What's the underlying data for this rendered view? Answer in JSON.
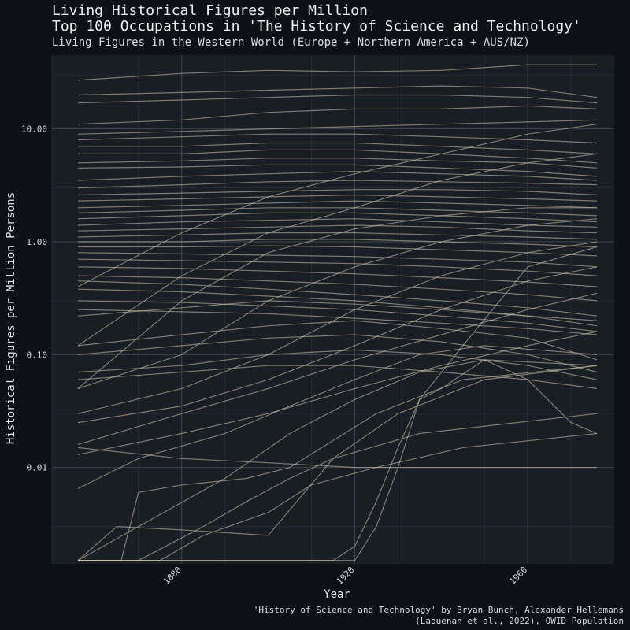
{
  "chart_data": {
    "type": "line",
    "title": "Living Historical Figures per Million",
    "title_line2": "Top 100 Occupations in 'The History of Science and Technology'",
    "subtitle": "Living Figures in the Western World (Europe + Northern America + AUS/NZ)",
    "xlabel": "Year",
    "ylabel": "Historical Figures per Million Persons",
    "caption_line1": "'History of Science and Technology' by Bryan Bunch, Alexander Hellemans",
    "caption_line2": "(Laouenan et al., 2022), OWID Population",
    "y_scale": "log10",
    "xlim": [
      1850,
      1980
    ],
    "ylim": [
      0.0014,
      45
    ],
    "x_ticks": [
      1880,
      1920,
      1960
    ],
    "x_tick_labels": [
      "1880",
      "1920",
      "1960"
    ],
    "y_ticks": [
      0.01,
      0.1,
      1,
      10
    ],
    "y_tick_labels": [
      "0.01",
      "0.10",
      "1.00",
      "10.00"
    ],
    "grid": true,
    "legend": "none",
    "line_color": "#cfc8b0",
    "series": [
      {
        "x": [
          1856,
          1880,
          1900,
          1920,
          1940,
          1960,
          1976
        ],
        "values": [
          27,
          31,
          33,
          32,
          33,
          37,
          37
        ]
      },
      {
        "x": [
          1856,
          1880,
          1900,
          1920,
          1940,
          1960,
          1976
        ],
        "values": [
          20,
          21,
          22,
          23,
          24,
          23,
          19
        ]
      },
      {
        "x": [
          1856,
          1880,
          1900,
          1920,
          1940,
          1960,
          1976
        ],
        "values": [
          17,
          18,
          19,
          20,
          20,
          19,
          17
        ]
      },
      {
        "x": [
          1856,
          1880,
          1900,
          1920,
          1940,
          1960,
          1976
        ],
        "values": [
          11,
          12,
          14,
          15,
          15,
          16,
          15
        ]
      },
      {
        "x": [
          1856,
          1880,
          1900,
          1920,
          1940,
          1960,
          1976
        ],
        "values": [
          9,
          9.5,
          10,
          10.5,
          11,
          11.5,
          12
        ]
      },
      {
        "x": [
          1856,
          1880,
          1900,
          1920,
          1940,
          1960,
          1976
        ],
        "values": [
          8,
          8.5,
          9,
          9,
          8.5,
          8,
          7.5
        ]
      },
      {
        "x": [
          1856,
          1880,
          1900,
          1920,
          1940,
          1960,
          1976
        ],
        "values": [
          7,
          7,
          7.5,
          7.5,
          7,
          6.5,
          6
        ]
      },
      {
        "x": [
          1856,
          1880,
          1900,
          1920,
          1940,
          1960,
          1976
        ],
        "values": [
          6,
          6,
          6.5,
          6.5,
          6,
          5.5,
          5
        ]
      },
      {
        "x": [
          1856,
          1880,
          1900,
          1920,
          1940,
          1960,
          1976
        ],
        "values": [
          5,
          5.2,
          5.5,
          5.5,
          5.2,
          5,
          4.5
        ]
      },
      {
        "x": [
          1856,
          1880,
          1900,
          1920,
          1940,
          1960,
          1976
        ],
        "values": [
          4.5,
          4.6,
          4.8,
          4.8,
          4.5,
          4.2,
          3.8
        ]
      },
      {
        "x": [
          1856,
          1880,
          1900,
          1920,
          1940,
          1960,
          1976
        ],
        "values": [
          3.5,
          3.8,
          4,
          4.2,
          4,
          3.8,
          3.5
        ]
      },
      {
        "x": [
          1856,
          1880,
          1900,
          1920,
          1940,
          1960,
          1976
        ],
        "values": [
          3,
          3.2,
          3.4,
          3.5,
          3.4,
          3.3,
          3.2
        ]
      },
      {
        "x": [
          1856,
          1880,
          1900,
          1920,
          1940,
          1960,
          1976
        ],
        "values": [
          2.6,
          2.7,
          2.8,
          2.9,
          2.9,
          2.8,
          2.6
        ]
      },
      {
        "x": [
          1856,
          1880,
          1900,
          1920,
          1940,
          1960,
          1976
        ],
        "values": [
          2.3,
          2.4,
          2.5,
          2.6,
          2.5,
          2.4,
          2.3
        ]
      },
      {
        "x": [
          1856,
          1880,
          1900,
          1920,
          1940,
          1960,
          1976
        ],
        "values": [
          2,
          2.1,
          2.2,
          2.3,
          2.2,
          2.1,
          2
        ]
      },
      {
        "x": [
          1856,
          1880,
          1900,
          1920,
          1940,
          1960,
          1976
        ],
        "values": [
          1.8,
          1.9,
          2,
          2,
          1.9,
          1.8,
          1.7
        ]
      },
      {
        "x": [
          1856,
          1880,
          1900,
          1920,
          1940,
          1960,
          1976
        ],
        "values": [
          1.6,
          1.7,
          1.8,
          1.8,
          1.7,
          1.6,
          1.5
        ]
      },
      {
        "x": [
          1856,
          1880,
          1900,
          1920,
          1940,
          1960,
          1976
        ],
        "values": [
          1.4,
          1.5,
          1.55,
          1.6,
          1.5,
          1.4,
          1.35
        ]
      },
      {
        "x": [
          1856,
          1880,
          1900,
          1920,
          1940,
          1960,
          1976
        ],
        "values": [
          1.25,
          1.3,
          1.35,
          1.4,
          1.35,
          1.25,
          1.2
        ]
      },
      {
        "x": [
          1856,
          1880,
          1900,
          1920,
          1940,
          1960,
          1976
        ],
        "values": [
          1.1,
          1.15,
          1.2,
          1.2,
          1.15,
          1.1,
          1.05
        ]
      },
      {
        "x": [
          1856,
          1880,
          1900,
          1920,
          1940,
          1960,
          1976
        ],
        "values": [
          1,
          1,
          1.05,
          1.05,
          1,
          0.95,
          0.9
        ]
      },
      {
        "x": [
          1856,
          1880,
          1900,
          1920,
          1940,
          1960,
          1976
        ],
        "values": [
          0.9,
          0.9,
          0.92,
          0.9,
          0.85,
          0.8,
          0.75
        ]
      },
      {
        "x": [
          1856,
          1880,
          1900,
          1920,
          1940,
          1960,
          1976
        ],
        "values": [
          0.8,
          0.78,
          0.76,
          0.74,
          0.7,
          0.66,
          0.6
        ]
      },
      {
        "x": [
          1856,
          1880,
          1900,
          1920,
          1940,
          1960,
          1976
        ],
        "values": [
          0.7,
          0.68,
          0.66,
          0.64,
          0.6,
          0.55,
          0.5
        ]
      },
      {
        "x": [
          1856,
          1880,
          1900,
          1920,
          1940,
          1960,
          1976
        ],
        "values": [
          0.6,
          0.58,
          0.55,
          0.52,
          0.48,
          0.44,
          0.4
        ]
      },
      {
        "x": [
          1856,
          1880,
          1900,
          1920,
          1940,
          1960,
          1976
        ],
        "values": [
          0.5,
          0.48,
          0.45,
          0.42,
          0.38,
          0.34,
          0.3
        ]
      },
      {
        "x": [
          1856,
          1880,
          1900,
          1920,
          1940,
          1960,
          1976
        ],
        "values": [
          0.45,
          0.42,
          0.38,
          0.34,
          0.3,
          0.26,
          0.22
        ]
      },
      {
        "x": [
          1856,
          1880,
          1900,
          1920,
          1940,
          1960,
          1976
        ],
        "values": [
          0.38,
          0.36,
          0.33,
          0.3,
          0.26,
          0.22,
          0.18
        ]
      },
      {
        "x": [
          1856,
          1880,
          1900,
          1920,
          1940,
          1960,
          1976
        ],
        "values": [
          0.3,
          0.29,
          0.27,
          0.25,
          0.22,
          0.19,
          0.16
        ]
      },
      {
        "x": [
          1856,
          1880,
          1900,
          1920,
          1940,
          1960,
          1976
        ],
        "values": [
          0.25,
          0.24,
          0.23,
          0.21,
          0.19,
          0.17,
          0.15
        ]
      },
      {
        "x": [
          1856,
          1880,
          1900,
          1920,
          1940,
          1960,
          1976
        ],
        "values": [
          0.22,
          0.26,
          0.3,
          0.28,
          0.25,
          0.22,
          0.2
        ]
      },
      {
        "x": [
          1856,
          1880,
          1900,
          1920,
          1940,
          1960,
          1976
        ],
        "values": [
          0.12,
          0.15,
          0.18,
          0.2,
          0.17,
          0.14,
          0.09
        ]
      },
      {
        "x": [
          1856,
          1880,
          1900,
          1920,
          1940,
          1960,
          1976
        ],
        "values": [
          0.1,
          0.12,
          0.14,
          0.15,
          0.13,
          0.1,
          0.07
        ]
      },
      {
        "x": [
          1856,
          1880,
          1900,
          1920,
          1940,
          1960,
          1976
        ],
        "values": [
          0.07,
          0.08,
          0.1,
          0.11,
          0.1,
          0.08,
          0.06
        ]
      },
      {
        "x": [
          1856,
          1880,
          1900,
          1920,
          1940,
          1960,
          1976
        ],
        "values": [
          0.06,
          0.07,
          0.08,
          0.08,
          0.07,
          0.06,
          0.05
        ]
      },
      {
        "x": [
          1856,
          1880,
          1900,
          1920,
          1940,
          1960,
          1976
        ],
        "values": [
          0.05,
          0.3,
          0.8,
          1.3,
          1.7,
          2,
          2
        ]
      },
      {
        "x": [
          1856,
          1880,
          1900,
          1920,
          1940,
          1960,
          1976
        ],
        "values": [
          0.12,
          0.5,
          1.2,
          2,
          3.5,
          5,
          6
        ]
      },
      {
        "x": [
          1856,
          1880,
          1900,
          1920,
          1940,
          1960,
          1976
        ],
        "values": [
          0.4,
          1.2,
          2.5,
          4,
          6,
          9,
          11
        ]
      },
      {
        "x": [
          1856,
          1880,
          1900,
          1920,
          1940,
          1960,
          1976
        ],
        "values": [
          0.05,
          0.1,
          0.3,
          0.6,
          1,
          1.4,
          1.6
        ]
      },
      {
        "x": [
          1856,
          1880,
          1900,
          1920,
          1940,
          1960,
          1976
        ],
        "values": [
          0.03,
          0.05,
          0.1,
          0.25,
          0.5,
          0.8,
          1
        ]
      },
      {
        "x": [
          1856,
          1880,
          1900,
          1920,
          1940,
          1960,
          1976
        ],
        "values": [
          0.025,
          0.035,
          0.06,
          0.12,
          0.25,
          0.45,
          0.6
        ]
      },
      {
        "x": [
          1856,
          1880,
          1900,
          1920,
          1940,
          1960,
          1976
        ],
        "values": [
          0.016,
          0.03,
          0.05,
          0.09,
          0.15,
          0.25,
          0.35
        ]
      },
      {
        "x": [
          1856,
          1880,
          1900,
          1920,
          1940,
          1960,
          1976
        ],
        "values": [
          0.013,
          0.02,
          0.03,
          0.05,
          0.08,
          0.12,
          0.16
        ]
      },
      {
        "x": [
          1856,
          1880,
          1900,
          1920,
          1940,
          1960,
          1976
        ],
        "values": [
          0.015,
          0.012,
          0.011,
          0.01,
          0.01,
          0.01,
          0.01
        ]
      },
      {
        "x": [
          1856,
          1870,
          1890,
          1905,
          1920,
          1935,
          1950,
          1976
        ],
        "values": [
          0.0065,
          0.012,
          0.02,
          0.035,
          0.06,
          0.1,
          0.12,
          0.1
        ]
      },
      {
        "x": [
          1856,
          1870,
          1890,
          1905,
          1920,
          1935,
          1950,
          1976
        ],
        "values": [
          0.0015,
          0.003,
          0.008,
          0.02,
          0.04,
          0.07,
          0.09,
          0.08
        ]
      },
      {
        "x": [
          1856,
          1865,
          1880,
          1900,
          1915,
          1930,
          1950,
          1976
        ],
        "values": [
          0.0015,
          0.003,
          0.0028,
          0.0025,
          0.012,
          0.03,
          0.06,
          0.08
        ]
      },
      {
        "x": [
          1856,
          1866,
          1870,
          1880,
          1895,
          1905,
          1925,
          1945,
          1976
        ],
        "values": [
          0.0015,
          0.0015,
          0.006,
          0.007,
          0.008,
          0.01,
          0.03,
          0.06,
          0.08
        ]
      },
      {
        "x": [
          1856,
          1870,
          1885,
          1895,
          1905,
          1915,
          1935,
          1976
        ],
        "values": [
          0.0015,
          0.0015,
          0.003,
          0.005,
          0.008,
          0.012,
          0.02,
          0.03
        ]
      },
      {
        "x": [
          1856,
          1875,
          1885,
          1900,
          1910,
          1925,
          1945,
          1976
        ],
        "values": [
          0.0015,
          0.0015,
          0.0025,
          0.004,
          0.007,
          0.01,
          0.015,
          0.02
        ]
      },
      {
        "x": [
          1856,
          1915,
          1920,
          1925,
          1930,
          1935,
          1945,
          1960,
          1976
        ],
        "values": [
          0.0015,
          0.0015,
          0.002,
          0.005,
          0.015,
          0.04,
          0.12,
          0.6,
          0.9
        ]
      },
      {
        "x": [
          1856,
          1920,
          1925,
          1930,
          1935,
          1940,
          1950,
          1960,
          1970,
          1976
        ],
        "values": [
          0.0015,
          0.0015,
          0.003,
          0.01,
          0.04,
          0.05,
          0.09,
          0.06,
          0.025,
          0.02
        ]
      }
    ]
  }
}
